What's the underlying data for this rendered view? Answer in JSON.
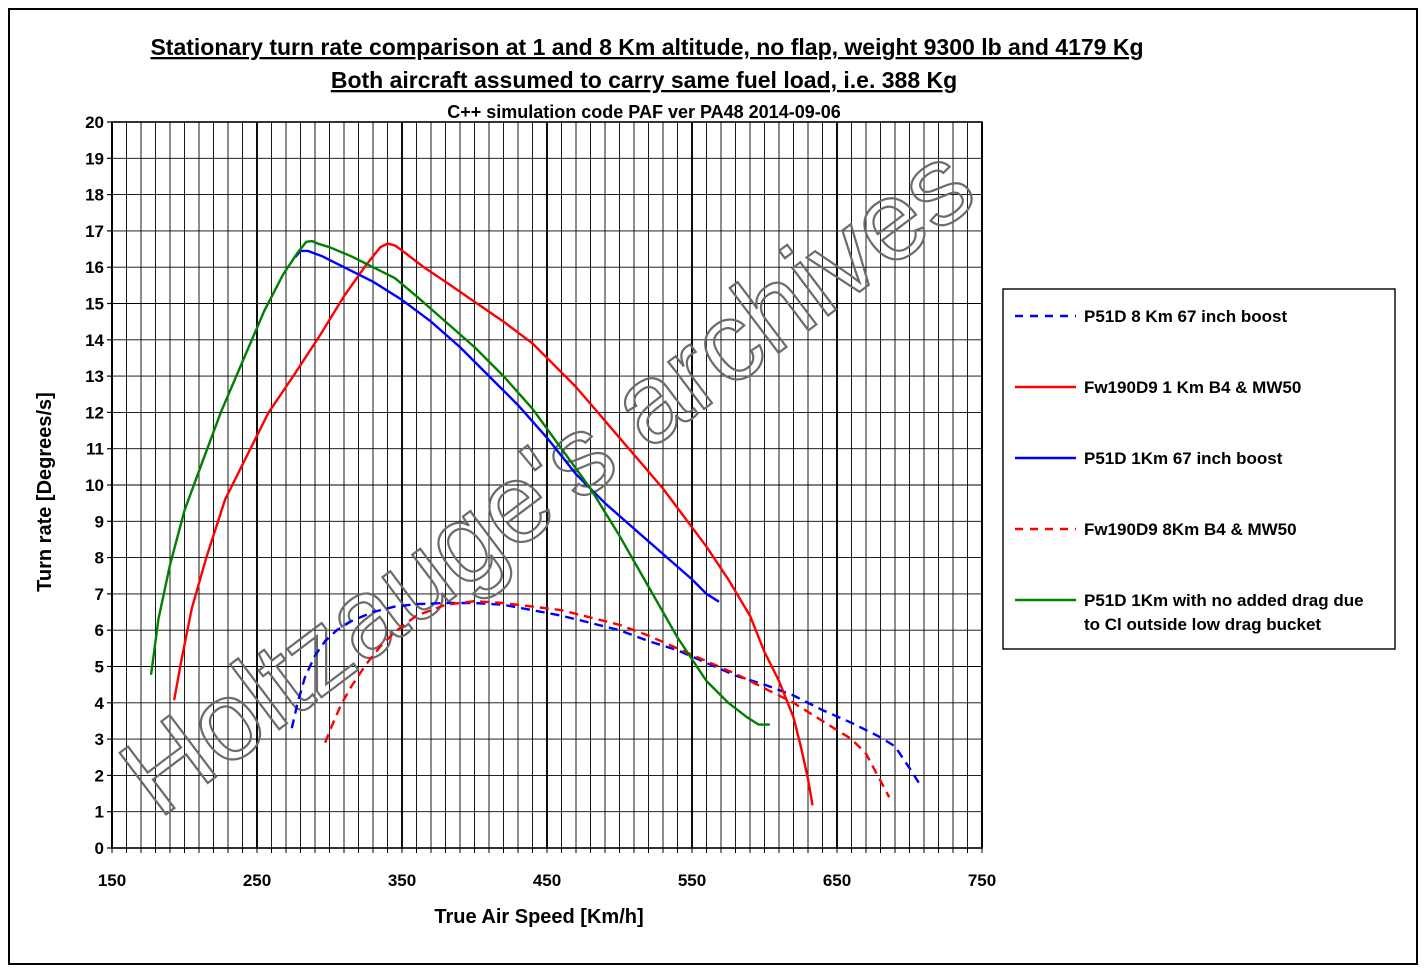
{
  "chart_data": {
    "type": "line",
    "title": "Stationary turn rate comparison at 1 and 8 Km altitude, no flap, weight 9300 lb and 4179 Kg ",
    "subtitle": "Both aircraft assumed to carry same fuel load, i.e. 388 Kg",
    "subtitle2": "C++ simulation code PAF ver PA48 2014-09-06",
    "xlabel": "True Air Speed [Km/h]",
    "ylabel": "Turn rate [Degrees/s]",
    "xlim": [
      150,
      750
    ],
    "ylim": [
      0,
      20
    ],
    "x_major_ticks": [
      150,
      250,
      350,
      450,
      550,
      650,
      750
    ],
    "x_major_tick_labels": [
      "150",
      "250",
      "350",
      "450",
      "550",
      "650",
      "750"
    ],
    "y_ticks": [
      0,
      1,
      2,
      3,
      4,
      5,
      6,
      7,
      8,
      9,
      10,
      11,
      12,
      13,
      14,
      15,
      16,
      17,
      18,
      19,
      20
    ],
    "y_tick_labels": [
      "0",
      "1",
      "2",
      "3",
      "4",
      "5",
      "6",
      "7",
      "8",
      "9",
      "10",
      "11",
      "12",
      "13",
      "14",
      "15",
      "16",
      "17",
      "18",
      "19",
      "20"
    ],
    "x_minor_step": 10,
    "x_major_step": 100,
    "grid": true,
    "legend_position": "right",
    "watermark": "Holtzauge's archives",
    "series": [
      {
        "name": "P51D 8 Km 67 inch boost",
        "color": "#0000ff",
        "dashed": true,
        "x": [
          274,
          278,
          283,
          290,
          297,
          305,
          315,
          330,
          345,
          360,
          380,
          400,
          420,
          440,
          460,
          480,
          500,
          520,
          540,
          560,
          580,
          600,
          620,
          640,
          660,
          680,
          690,
          700,
          708
        ],
        "y": [
          3.3,
          4.0,
          4.7,
          5.3,
          5.7,
          6.0,
          6.25,
          6.5,
          6.65,
          6.72,
          6.75,
          6.75,
          6.7,
          6.55,
          6.4,
          6.2,
          6.0,
          5.7,
          5.45,
          5.1,
          4.75,
          4.5,
          4.2,
          3.8,
          3.45,
          3.05,
          2.8,
          2.2,
          1.7
        ]
      },
      {
        "name": "Fw190D9 1 Km B4 & MW50",
        "color": "#ff0000",
        "dashed": false,
        "x": [
          193,
          198,
          205,
          215,
          228,
          243,
          258,
          275,
          293,
          310,
          325,
          335,
          340,
          345,
          352,
          365,
          380,
          400,
          420,
          440,
          455,
          470,
          485,
          500,
          515,
          530,
          545,
          560,
          575,
          590,
          600,
          610,
          620,
          625,
          630,
          633
        ],
        "y": [
          4.1,
          5.2,
          6.6,
          8.0,
          9.6,
          10.8,
          12.0,
          13.0,
          14.1,
          15.2,
          16.05,
          16.55,
          16.65,
          16.6,
          16.4,
          16.0,
          15.6,
          15.05,
          14.5,
          13.9,
          13.3,
          12.7,
          12.0,
          11.3,
          10.6,
          9.9,
          9.1,
          8.3,
          7.4,
          6.4,
          5.4,
          4.6,
          3.6,
          2.8,
          1.9,
          1.2
        ]
      },
      {
        "name": "P51D 1Km 67 inch boost",
        "color": "#0000ff",
        "dashed": false,
        "x": [
          277,
          280,
          285,
          295,
          310,
          330,
          350,
          370,
          390,
          410,
          430,
          450,
          470,
          490,
          510,
          530,
          550,
          560,
          568
        ],
        "y": [
          16.3,
          16.45,
          16.45,
          16.3,
          16.0,
          15.6,
          15.1,
          14.5,
          13.8,
          13.0,
          12.2,
          11.3,
          10.3,
          9.5,
          8.8,
          8.1,
          7.4,
          7.0,
          6.8
        ]
      },
      {
        "name": "Fw190D9 8Km B4 & MW50",
        "color": "#ff0000",
        "dashed": true,
        "x": [
          297,
          302,
          308,
          315,
          325,
          335,
          345,
          360,
          380,
          400,
          420,
          440,
          460,
          480,
          500,
          520,
          540,
          560,
          580,
          600,
          620,
          640,
          660,
          670,
          678,
          686
        ],
        "y": [
          2.9,
          3.4,
          3.95,
          4.45,
          5.05,
          5.55,
          5.95,
          6.4,
          6.7,
          6.8,
          6.75,
          6.65,
          6.55,
          6.35,
          6.15,
          5.85,
          5.5,
          5.15,
          4.8,
          4.4,
          4.0,
          3.5,
          3.0,
          2.6,
          2.0,
          1.4
        ]
      },
      {
        "name": "P51D 1Km with no added drag due to Cl outside low drag bucket",
        "color": "#008000",
        "dashed": false,
        "x": [
          177,
          182,
          190,
          200,
          212,
          225,
          240,
          255,
          268,
          278,
          284,
          288,
          292,
          300,
          315,
          330,
          345,
          360,
          380,
          400,
          420,
          440,
          460,
          480,
          500,
          520,
          540,
          560,
          575,
          588,
          596,
          603
        ],
        "y": [
          4.8,
          6.3,
          7.8,
          9.3,
          10.6,
          12.0,
          13.4,
          14.8,
          15.8,
          16.4,
          16.7,
          16.72,
          16.65,
          16.55,
          16.3,
          16.0,
          15.7,
          15.2,
          14.5,
          13.8,
          13.0,
          12.1,
          11.0,
          9.9,
          8.6,
          7.2,
          5.8,
          4.6,
          4.0,
          3.6,
          3.4,
          3.4
        ]
      }
    ],
    "legend_lines": [
      [
        "P51D 8 Km 67 inch boost"
      ],
      [
        "Fw190D9 1 Km B4 & MW50"
      ],
      [
        "P51D 1Km 67 inch boost"
      ],
      [
        "Fw190D9 8Km B4 & MW50"
      ],
      [
        "P51D 1Km with no added drag due",
        "to Cl outside low drag bucket"
      ]
    ]
  }
}
